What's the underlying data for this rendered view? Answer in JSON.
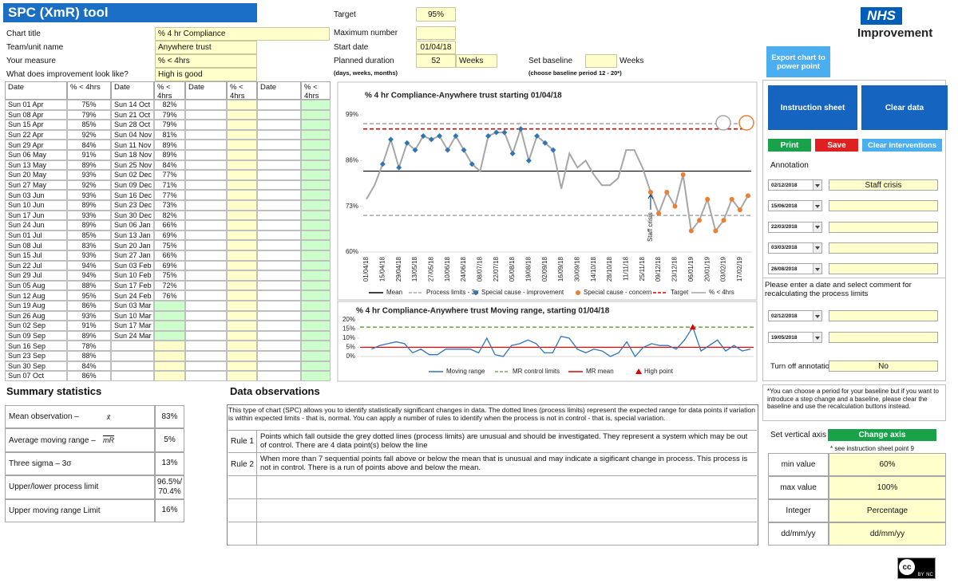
{
  "header": {
    "title": "SPC (XmR) tool",
    "logo": [
      "NHS",
      "Improvement"
    ]
  },
  "form": [
    {
      "label": "Chart title",
      "value": "% 4 hr Compliance"
    },
    {
      "label": "Team/unit name",
      "value": "Anywhere trust"
    },
    {
      "label": "Your measure",
      "value": "% < 4hrs"
    },
    {
      "label": "What does improvement look like?",
      "value": "High is good"
    }
  ],
  "settings": {
    "target_label": "Target",
    "target": "95%",
    "max_label": "Maximum number",
    "start_label": "Start date",
    "start": "01/04/18",
    "duration_label": "Planned duration",
    "duration": "52",
    "duration_unit": "Weeks",
    "duration_hint": "(days, weeks, months)",
    "baseline_label": "Set baseline",
    "baseline_unit": "Weeks",
    "baseline_hint": "(choose baseline period 12 - 20*)"
  },
  "table": {
    "headers": [
      "Date",
      "% < 4hrs",
      "Date",
      "% < 4hrs",
      "Date",
      "% < 4hrs",
      "Date",
      "% < 4hrs"
    ],
    "rows": [
      [
        "Sun 01 Apr",
        "75%",
        "Sun 14 Oct",
        "82%"
      ],
      [
        "Sun 08 Apr",
        "79%",
        "Sun 21 Oct",
        "79%"
      ],
      [
        "Sun 15 Apr",
        "85%",
        "Sun 28 Oct",
        "79%"
      ],
      [
        "Sun 22 Apr",
        "92%",
        "Sun 04 Nov",
        "81%"
      ],
      [
        "Sun 29 Apr",
        "84%",
        "Sun 11 Nov",
        "89%"
      ],
      [
        "Sun 06 May",
        "91%",
        "Sun 18 Nov",
        "89%"
      ],
      [
        "Sun 13 May",
        "89%",
        "Sun 25 Nov",
        "84%"
      ],
      [
        "Sun 20 May",
        "93%",
        "Sun 02 Dec",
        "77%"
      ],
      [
        "Sun 27 May",
        "92%",
        "Sun 09 Dec",
        "71%"
      ],
      [
        "Sun 03 Jun",
        "93%",
        "Sun 16 Dec",
        "77%"
      ],
      [
        "Sun 10 Jun",
        "89%",
        "Sun 23 Dec",
        "73%"
      ],
      [
        "Sun 17 Jun",
        "93%",
        "Sun 30 Dec",
        "82%"
      ],
      [
        "Sun 24 Jun",
        "89%",
        "Sun 06 Jan",
        "66%"
      ],
      [
        "Sun 01 Jul",
        "85%",
        "Sun 13 Jan",
        "69%"
      ],
      [
        "Sun 08 Jul",
        "83%",
        "Sun 20 Jan",
        "75%"
      ],
      [
        "Sun 15 Jul",
        "93%",
        "Sun 27 Jan",
        "66%"
      ],
      [
        "Sun 22 Jul",
        "94%",
        "Sun 03 Feb",
        "69%"
      ],
      [
        "Sun 29 Jul",
        "94%",
        "Sun 10 Feb",
        "75%"
      ],
      [
        "Sun 05 Aug",
        "88%",
        "Sun 17 Feb",
        "72%"
      ],
      [
        "Sun 12 Aug",
        "95%",
        "Sun 24 Feb",
        "76%"
      ],
      [
        "Sun 19 Aug",
        "86%",
        "Sun 03 Mar",
        null
      ],
      [
        "Sun 26 Aug",
        "93%",
        "Sun 10 Mar",
        null
      ],
      [
        "Sun 02 Sep",
        "91%",
        "Sun 17 Mar",
        null
      ],
      [
        "Sun 09 Sep",
        "89%",
        "Sun 24 Mar",
        null
      ],
      [
        "Sun 16 Sep",
        "78%",
        null,
        null
      ],
      [
        "Sun 23 Sep",
        "88%",
        null,
        null
      ],
      [
        "Sun 30 Sep",
        "84%",
        null,
        null
      ],
      [
        "Sun 07 Oct",
        "86%",
        null,
        null
      ]
    ]
  },
  "chart_data": [
    {
      "type": "line",
      "title": "% 4 hr Compliance-Anywhere trust starting 01/04/18",
      "categories": [
        "01/04/18",
        null,
        "15/04/18",
        null,
        "29/04/18",
        null,
        "13/05/18",
        null,
        "27/05/18",
        null,
        "10/06/18",
        null,
        "24/06/18",
        null,
        "08/07/18",
        null,
        "22/07/18",
        null,
        "05/08/18",
        null,
        "19/08/18",
        null,
        "02/09/18",
        null,
        "16/09/18",
        null,
        "30/09/18",
        null,
        "14/10/18",
        null,
        "28/10/18",
        null,
        "11/11/18",
        null,
        "25/11/18",
        null,
        "09/12/18",
        null,
        "23/12/18",
        null,
        "06/01/19",
        null,
        "20/01/19",
        null,
        "03/02/19",
        null,
        "17/02/19",
        null
      ],
      "series": [
        {
          "name": "% < 4hrs",
          "color": "#a6a6a6",
          "values": [
            75,
            79,
            85,
            92,
            84,
            91,
            89,
            93,
            92,
            93,
            89,
            93,
            89,
            85,
            83,
            93,
            94,
            94,
            88,
            95,
            86,
            93,
            91,
            89,
            78,
            88,
            84,
            86,
            82,
            79,
            79,
            81,
            89,
            89,
            84,
            77,
            71,
            77,
            73,
            82,
            66,
            69,
            75,
            66,
            69,
            75,
            72,
            76
          ]
        },
        {
          "name": "Special cause - improvement",
          "color": "#2e75b6",
          "marker": "diamond",
          "values": [
            null,
            null,
            85,
            92,
            84,
            91,
            89,
            93,
            92,
            93,
            89,
            93,
            89,
            85,
            null,
            93,
            94,
            94,
            88,
            95,
            86,
            93,
            91,
            89,
            null,
            null,
            null,
            null,
            null,
            null,
            null,
            null,
            null,
            null,
            null,
            null,
            null,
            null,
            null,
            null,
            null,
            null,
            null,
            null,
            null,
            null,
            null,
            null
          ]
        },
        {
          "name": "Special cause - concern",
          "color": "#ed7d31",
          "marker": "circle",
          "values": [
            null,
            null,
            null,
            null,
            null,
            null,
            null,
            null,
            null,
            null,
            null,
            null,
            null,
            null,
            null,
            null,
            null,
            null,
            null,
            null,
            null,
            null,
            null,
            null,
            null,
            null,
            null,
            null,
            null,
            null,
            null,
            null,
            null,
            null,
            null,
            77,
            71,
            77,
            73,
            82,
            66,
            69,
            75,
            66,
            69,
            75,
            72,
            76
          ]
        }
      ],
      "lines": [
        {
          "name": "Mean",
          "color": "#000000",
          "values": [
            83
          ]
        },
        {
          "name": "Process limits - 3σ",
          "color": "#a6a6a6",
          "dash": true,
          "values": [
            96.5,
            70.4
          ]
        },
        {
          "name": "Target",
          "color": "#e00000",
          "dash": true,
          "values": [
            95
          ]
        }
      ],
      "annotations": [
        {
          "text": "Staff crisis"
        }
      ],
      "ylim": [
        60,
        99
      ],
      "yticks": [
        {
          "value": 60,
          "label": "60%"
        },
        {
          "value": 73,
          "label": "73%"
        },
        {
          "value": 86,
          "label": "86%"
        },
        {
          "value": 99,
          "label": "99%"
        }
      ]
    },
    {
      "type": "line",
      "title": "% 4 hr Compliance-Anywhere trust Moving range, starting 01/04/18",
      "series": [
        {
          "name": "Moving range",
          "color": "#2e75b6",
          "values": [
            null,
            4,
            6,
            7,
            8,
            7,
            2,
            4,
            1,
            1,
            4,
            4,
            4,
            4,
            2,
            10,
            1,
            0,
            6,
            7,
            9,
            7,
            2,
            2,
            11,
            10,
            4,
            2,
            4,
            3,
            0,
            2,
            8,
            0,
            5,
            7,
            6,
            6,
            4,
            9,
            16,
            3,
            6,
            9,
            3,
            6,
            3,
            4
          ]
        },
        {
          "name": "High point",
          "color": "#e00000",
          "marker": "triangle",
          "values": [
            null,
            null,
            null,
            null,
            null,
            null,
            null,
            null,
            null,
            null,
            null,
            null,
            null,
            null,
            null,
            null,
            null,
            null,
            null,
            null,
            null,
            null,
            null,
            null,
            null,
            null,
            null,
            null,
            null,
            null,
            null,
            null,
            null,
            null,
            null,
            null,
            null,
            null,
            null,
            null,
            16,
            null,
            null,
            null,
            null,
            null,
            null,
            null
          ]
        }
      ],
      "lines": [
        {
          "name": "MR control limits",
          "color": "#70ad47",
          "dash": true,
          "values": [
            16
          ]
        },
        {
          "name": "MR mean",
          "color": "#e00000",
          "values": [
            5
          ]
        }
      ],
      "ylim": [
        0,
        20
      ],
      "yticks": [
        {
          "value": 0,
          "label": "0%"
        },
        {
          "value": 5,
          "label": "5%"
        },
        {
          "value": 10,
          "label": "10%"
        },
        {
          "value": 15,
          "label": "15%"
        },
        {
          "value": 20,
          "label": "20%"
        }
      ]
    }
  ],
  "buttons": {
    "export": "Export chart to power point",
    "instruction": "Instruction sheet",
    "clear_data": "Clear data",
    "print": "Print",
    "save": "Save",
    "clear_interventions": "Clear interventions",
    "change_axis": "Change axis"
  },
  "annotation": {
    "title": "Annotation",
    "rows": [
      {
        "date": "02/12/2018",
        "comment": "Staff crisis"
      },
      {
        "date": "15/06/2018"
      },
      {
        "date": "22/03/2018"
      },
      {
        "date": "03/03/2018"
      },
      {
        "date": "26/08/2018"
      }
    ]
  },
  "recalc": {
    "text": "Please enter a date and select comment for recalculating the process limits",
    "rows": [
      "02/12/2018",
      "19/05/2018"
    ]
  },
  "turn_off": {
    "label": "Turn off annotatio",
    "value": "No"
  },
  "note": "*You can choose a period for your baseline but if you want to introduce a step change  and a baseline, please clear the baseline and use the recalculation buttons instead.",
  "axis": {
    "label": "Set vertical axis",
    "hint": "* see instruction sheet point 9",
    "rows": [
      [
        "min value",
        "60%"
      ],
      [
        "max value",
        "100%"
      ],
      [
        "Integer",
        "Percentage"
      ],
      [
        "dd/mm/yy",
        "dd/mm/yy"
      ]
    ]
  },
  "summary": {
    "title": "Summary statistics",
    "rows": [
      {
        "label": "Mean observation –",
        "symbol": "x̄",
        "value": "83%"
      },
      {
        "label": "Average moving range –",
        "symbol": "mR",
        "value": "5%"
      },
      {
        "label": "Three sigma – 3σ",
        "value": "13%"
      },
      {
        "label": "Upper/lower process limit",
        "value": "96.5%/ 70.4%"
      },
      {
        "label": "Upper moving range Limit",
        "value": "16%"
      }
    ]
  },
  "observations": {
    "title": "Data observations",
    "intro": "This type of chart (SPC) allows you to identify statistically significant changes in data. The dotted lines (process limits) represent the expected range for data points if variation is within expected limits - that is, normal. You can apply a number of rules to identify when the process is not in control - that is, special variation.",
    "rules": [
      [
        "Rule 1",
        "Points which fall outside the grey dotted lines (process limits) are unusual and should be investigated. They represent a system which may be out of control. There are 4 data point(s) below the line"
      ],
      [
        "Rule 2",
        "When more than 7 sequential points fall above or below the mean that is unusual and may indicate a sigificant change in process. This process is not in control. There is a run of points  above and below the mean."
      ]
    ]
  },
  "license": [
    "cc",
    "BY",
    "NC"
  ]
}
